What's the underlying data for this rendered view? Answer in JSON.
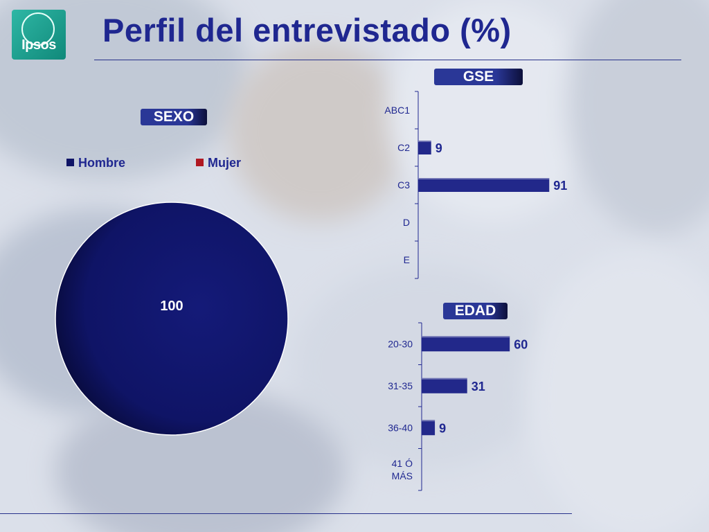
{
  "brand": {
    "logo_text": "Ipsos"
  },
  "title": "Perfil del entrevistado (%)",
  "colors": {
    "title": "#1f2790",
    "bar": "#22288a",
    "pie": "#0f1466",
    "mujer": "#b01822"
  },
  "sections": {
    "sexo": "SEXO",
    "gse": "GSE",
    "edad": "EDAD"
  },
  "chart_data": [
    {
      "type": "pie",
      "badge": "SEXO",
      "categories": [
        "Hombre",
        "Mujer"
      ],
      "values": [
        100,
        0
      ],
      "data_labels": [
        "100"
      ],
      "legend": "top"
    },
    {
      "type": "bar",
      "orientation": "horizontal",
      "badge": "GSE",
      "categories": [
        "ABC1",
        "C2",
        "C3",
        "D",
        "E"
      ],
      "values": [
        null,
        9,
        91,
        null,
        null
      ]
    },
    {
      "type": "bar",
      "orientation": "horizontal",
      "badge": "EDAD",
      "categories": [
        "20-30",
        "31-35",
        "36-40",
        "41 Ó MÁS"
      ],
      "values": [
        60,
        31,
        9,
        null
      ]
    }
  ]
}
